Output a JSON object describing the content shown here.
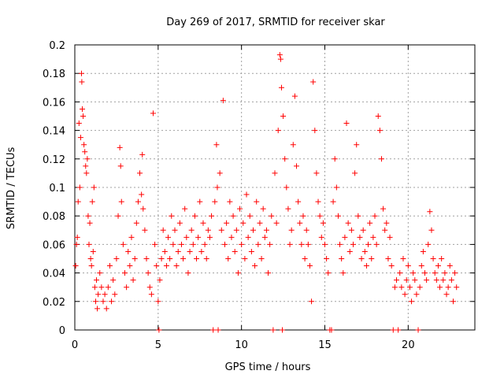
{
  "chart_data": {
    "type": "scatter",
    "title": "Day 269 of 2017, SRMTID for receiver skar",
    "xlabel": "GPS time / hours",
    "ylabel": "SRMTID / TECUs",
    "xlim": [
      0,
      24
    ],
    "ylim": [
      0,
      0.2
    ],
    "x_ticks": [
      {
        "value": 0,
        "label": "0"
      },
      {
        "value": 5,
        "label": "5"
      },
      {
        "value": 10,
        "label": "10"
      },
      {
        "value": 15,
        "label": "15"
      },
      {
        "value": 20,
        "label": "20"
      }
    ],
    "y_ticks": [
      {
        "value": 0,
        "label": "0"
      },
      {
        "value": 0.02,
        "label": "0.02"
      },
      {
        "value": 0.04,
        "label": "0.04"
      },
      {
        "value": 0.06,
        "label": "0.06"
      },
      {
        "value": 0.08,
        "label": "0.08"
      },
      {
        "value": 0.1,
        "label": "0.1"
      },
      {
        "value": 0.12,
        "label": "0.12"
      },
      {
        "value": 0.14,
        "label": "0.14"
      },
      {
        "value": 0.16,
        "label": "0.16"
      },
      {
        "value": 0.18,
        "label": "0.18"
      },
      {
        "value": 0.2,
        "label": "0.2"
      }
    ],
    "grid": true,
    "marker": "plus",
    "marker_color": "#ff0000",
    "series": [
      {
        "points": [
          [
            0.05,
            0.045
          ],
          [
            0.1,
            0.06
          ],
          [
            0.15,
            0.065
          ],
          [
            0.2,
            0.09
          ],
          [
            0.25,
            0.145
          ],
          [
            0.3,
            0.1
          ],
          [
            0.35,
            0.135
          ],
          [
            0.4,
            0.18
          ],
          [
            0.42,
            0.174
          ],
          [
            0.45,
            0.155
          ],
          [
            0.5,
            0.15
          ],
          [
            0.55,
            0.13
          ],
          [
            0.6,
            0.125
          ],
          [
            0.65,
            0.115
          ],
          [
            0.7,
            0.11
          ],
          [
            0.75,
            0.12
          ],
          [
            0.8,
            0.08
          ],
          [
            0.85,
            0.06
          ],
          [
            0.9,
            0.075
          ],
          [
            0.95,
            0.05
          ],
          [
            1.0,
            0.045
          ],
          [
            1.05,
            0.09
          ],
          [
            1.1,
            0.055
          ],
          [
            1.15,
            0.1
          ],
          [
            1.2,
            0.03
          ],
          [
            1.25,
            0.02
          ],
          [
            1.3,
            0.035
          ],
          [
            1.35,
            0.015
          ],
          [
            1.4,
            0.025
          ],
          [
            1.5,
            0.04
          ],
          [
            1.6,
            0.03
          ],
          [
            1.7,
            0.02
          ],
          [
            1.8,
            0.025
          ],
          [
            1.9,
            0.015
          ],
          [
            2.0,
            0.03
          ],
          [
            2.1,
            0.045
          ],
          [
            2.2,
            0.02
          ],
          [
            2.3,
            0.035
          ],
          [
            2.4,
            0.025
          ],
          [
            2.5,
            0.05
          ],
          [
            2.6,
            0.08
          ],
          [
            2.7,
            0.128
          ],
          [
            2.75,
            0.115
          ],
          [
            2.8,
            0.09
          ],
          [
            2.9,
            0.06
          ],
          [
            3.0,
            0.04
          ],
          [
            3.1,
            0.03
          ],
          [
            3.2,
            0.055
          ],
          [
            3.3,
            0.045
          ],
          [
            3.4,
            0.065
          ],
          [
            3.5,
            0.035
          ],
          [
            3.6,
            0.05
          ],
          [
            3.7,
            0.075
          ],
          [
            3.8,
            0.09
          ],
          [
            3.9,
            0.11
          ],
          [
            4.0,
            0.095
          ],
          [
            4.05,
            0.123
          ],
          [
            4.1,
            0.085
          ],
          [
            4.2,
            0.07
          ],
          [
            4.3,
            0.05
          ],
          [
            4.4,
            0.04
          ],
          [
            4.5,
            0.03
          ],
          [
            4.6,
            0.025
          ],
          [
            4.7,
            0.152
          ],
          [
            4.8,
            0.06
          ],
          [
            4.9,
            0.045
          ],
          [
            5.0,
            0.02
          ],
          [
            5.05,
            0.0
          ],
          [
            5.1,
            0.035
          ],
          [
            5.2,
            0.05
          ],
          [
            5.3,
            0.07
          ],
          [
            5.4,
            0.055
          ],
          [
            5.5,
            0.045
          ],
          [
            5.6,
            0.065
          ],
          [
            5.7,
            0.05
          ],
          [
            5.8,
            0.08
          ],
          [
            5.9,
            0.06
          ],
          [
            6.0,
            0.07
          ],
          [
            6.1,
            0.045
          ],
          [
            6.2,
            0.055
          ],
          [
            6.3,
            0.075
          ],
          [
            6.4,
            0.06
          ],
          [
            6.5,
            0.05
          ],
          [
            6.6,
            0.085
          ],
          [
            6.7,
            0.065
          ],
          [
            6.8,
            0.04
          ],
          [
            6.9,
            0.055
          ],
          [
            7.0,
            0.07
          ],
          [
            7.1,
            0.06
          ],
          [
            7.2,
            0.08
          ],
          [
            7.3,
            0.05
          ],
          [
            7.4,
            0.065
          ],
          [
            7.5,
            0.09
          ],
          [
            7.6,
            0.055
          ],
          [
            7.7,
            0.075
          ],
          [
            7.8,
            0.06
          ],
          [
            7.9,
            0.05
          ],
          [
            8.0,
            0.07
          ],
          [
            8.1,
            0.065
          ],
          [
            8.2,
            0.08
          ],
          [
            8.3,
            0.0
          ],
          [
            8.4,
            0.09
          ],
          [
            8.5,
            0.13
          ],
          [
            8.55,
            0.1
          ],
          [
            8.6,
            0.0
          ],
          [
            8.7,
            0.11
          ],
          [
            8.8,
            0.07
          ],
          [
            8.9,
            0.161
          ],
          [
            9.0,
            0.06
          ],
          [
            9.1,
            0.075
          ],
          [
            9.2,
            0.05
          ],
          [
            9.3,
            0.09
          ],
          [
            9.4,
            0.065
          ],
          [
            9.5,
            0.08
          ],
          [
            9.6,
            0.055
          ],
          [
            9.7,
            0.07
          ],
          [
            9.8,
            0.04
          ],
          [
            9.9,
            0.085
          ],
          [
            10.0,
            0.06
          ],
          [
            10.1,
            0.075
          ],
          [
            10.2,
            0.05
          ],
          [
            10.3,
            0.095
          ],
          [
            10.4,
            0.065
          ],
          [
            10.5,
            0.08
          ],
          [
            10.6,
            0.055
          ],
          [
            10.7,
            0.07
          ],
          [
            10.8,
            0.045
          ],
          [
            10.9,
            0.09
          ],
          [
            11.0,
            0.06
          ],
          [
            11.1,
            0.075
          ],
          [
            11.2,
            0.05
          ],
          [
            11.3,
            0.085
          ],
          [
            11.4,
            0.065
          ],
          [
            11.5,
            0.07
          ],
          [
            11.6,
            0.04
          ],
          [
            11.7,
            0.06
          ],
          [
            11.8,
            0.08
          ],
          [
            11.9,
            0.0
          ],
          [
            12.0,
            0.11
          ],
          [
            12.1,
            0.075
          ],
          [
            12.2,
            0.14
          ],
          [
            12.3,
            0.193
          ],
          [
            12.35,
            0.19
          ],
          [
            12.4,
            0.17
          ],
          [
            12.45,
            0.0
          ],
          [
            12.5,
            0.15
          ],
          [
            12.6,
            0.12
          ],
          [
            12.7,
            0.1
          ],
          [
            12.8,
            0.085
          ],
          [
            12.9,
            0.06
          ],
          [
            13.0,
            0.07
          ],
          [
            13.1,
            0.13
          ],
          [
            13.2,
            0.164
          ],
          [
            13.3,
            0.115
          ],
          [
            13.4,
            0.09
          ],
          [
            13.5,
            0.075
          ],
          [
            13.6,
            0.06
          ],
          [
            13.7,
            0.08
          ],
          [
            13.8,
            0.05
          ],
          [
            13.9,
            0.07
          ],
          [
            14.0,
            0.06
          ],
          [
            14.1,
            0.045
          ],
          [
            14.2,
            0.02
          ],
          [
            14.3,
            0.174
          ],
          [
            14.4,
            0.14
          ],
          [
            14.5,
            0.11
          ],
          [
            14.6,
            0.09
          ],
          [
            14.7,
            0.08
          ],
          [
            14.8,
            0.065
          ],
          [
            14.9,
            0.075
          ],
          [
            15.0,
            0.06
          ],
          [
            15.1,
            0.05
          ],
          [
            15.2,
            0.04
          ],
          [
            15.3,
            0.0
          ],
          [
            15.4,
            0.0
          ],
          [
            15.5,
            0.09
          ],
          [
            15.6,
            0.12
          ],
          [
            15.7,
            0.1
          ],
          [
            15.8,
            0.08
          ],
          [
            15.9,
            0.06
          ],
          [
            16.0,
            0.05
          ],
          [
            16.1,
            0.04
          ],
          [
            16.2,
            0.065
          ],
          [
            16.3,
            0.145
          ],
          [
            16.4,
            0.075
          ],
          [
            16.5,
            0.055
          ],
          [
            16.6,
            0.07
          ],
          [
            16.7,
            0.06
          ],
          [
            16.8,
            0.11
          ],
          [
            16.9,
            0.13
          ],
          [
            17.0,
            0.08
          ],
          [
            17.1,
            0.065
          ],
          [
            17.2,
            0.05
          ],
          [
            17.3,
            0.07
          ],
          [
            17.4,
            0.055
          ],
          [
            17.5,
            0.045
          ],
          [
            17.6,
            0.06
          ],
          [
            17.7,
            0.075
          ],
          [
            17.8,
            0.05
          ],
          [
            17.9,
            0.065
          ],
          [
            18.0,
            0.08
          ],
          [
            18.1,
            0.06
          ],
          [
            18.2,
            0.15
          ],
          [
            18.3,
            0.14
          ],
          [
            18.4,
            0.12
          ],
          [
            18.5,
            0.085
          ],
          [
            18.6,
            0.07
          ],
          [
            18.7,
            0.075
          ],
          [
            18.8,
            0.05
          ],
          [
            18.9,
            0.065
          ],
          [
            19.0,
            0.045
          ],
          [
            19.1,
            0.0
          ],
          [
            19.2,
            0.03
          ],
          [
            19.3,
            0.035
          ],
          [
            19.4,
            0.0
          ],
          [
            19.5,
            0.04
          ],
          [
            19.6,
            0.03
          ],
          [
            19.7,
            0.05
          ],
          [
            19.8,
            0.025
          ],
          [
            19.9,
            0.035
          ],
          [
            20.0,
            0.045
          ],
          [
            20.1,
            0.03
          ],
          [
            20.2,
            0.02
          ],
          [
            20.3,
            0.04
          ],
          [
            20.4,
            0.035
          ],
          [
            20.5,
            0.025
          ],
          [
            20.6,
            0.0
          ],
          [
            20.7,
            0.03
          ],
          [
            20.8,
            0.045
          ],
          [
            20.9,
            0.055
          ],
          [
            21.0,
            0.04
          ],
          [
            21.1,
            0.035
          ],
          [
            21.2,
            0.06
          ],
          [
            21.3,
            0.083
          ],
          [
            21.4,
            0.07
          ],
          [
            21.5,
            0.05
          ],
          [
            21.6,
            0.04
          ],
          [
            21.7,
            0.035
          ],
          [
            21.8,
            0.045
          ],
          [
            21.9,
            0.03
          ],
          [
            22.0,
            0.05
          ],
          [
            22.1,
            0.035
          ],
          [
            22.2,
            0.04
          ],
          [
            22.3,
            0.025
          ],
          [
            22.4,
            0.03
          ],
          [
            22.5,
            0.045
          ],
          [
            22.6,
            0.035
          ],
          [
            22.7,
            0.02
          ],
          [
            22.8,
            0.04
          ],
          [
            22.9,
            0.03
          ]
        ]
      }
    ]
  }
}
